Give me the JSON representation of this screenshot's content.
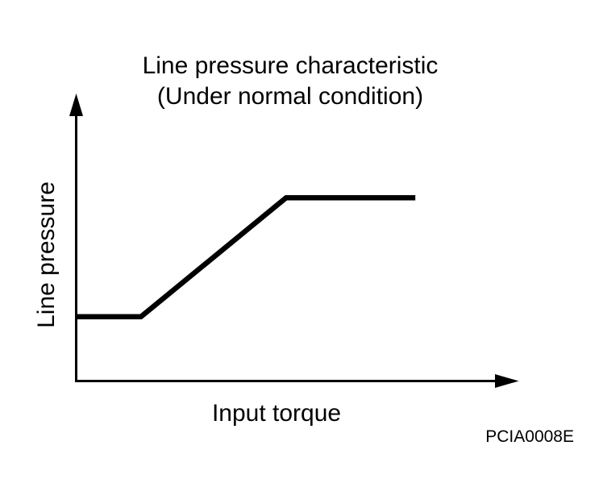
{
  "title": {
    "line1": "Line pressure characteristic",
    "line2": "(Under normal condition)"
  },
  "axes": {
    "x_label": "Input torque",
    "y_label": "Line pressure"
  },
  "figure_code": "PCIA0008E",
  "colors": {
    "ink": "#000000",
    "background": "#ffffff"
  },
  "chart_data": {
    "type": "line",
    "title": "Line pressure characteristic (Under normal condition)",
    "xlabel": "Input torque",
    "ylabel": "Line pressure",
    "x_range": [
      0,
      1
    ],
    "y_range": [
      0,
      1
    ],
    "grid": false,
    "tick_labels": "none",
    "axis_style": "arrows-from-origin",
    "series": [
      {
        "name": "line-pressure-vs-input-torque",
        "description": "Pressure constant at low level, rises linearly at mid torque, then saturates at high level",
        "points": [
          {
            "x": 0.0,
            "y": 0.223
          },
          {
            "x": 0.149,
            "y": 0.223
          },
          {
            "x": 0.477,
            "y": 0.639
          },
          {
            "x": 0.769,
            "y": 0.639
          }
        ]
      }
    ]
  }
}
